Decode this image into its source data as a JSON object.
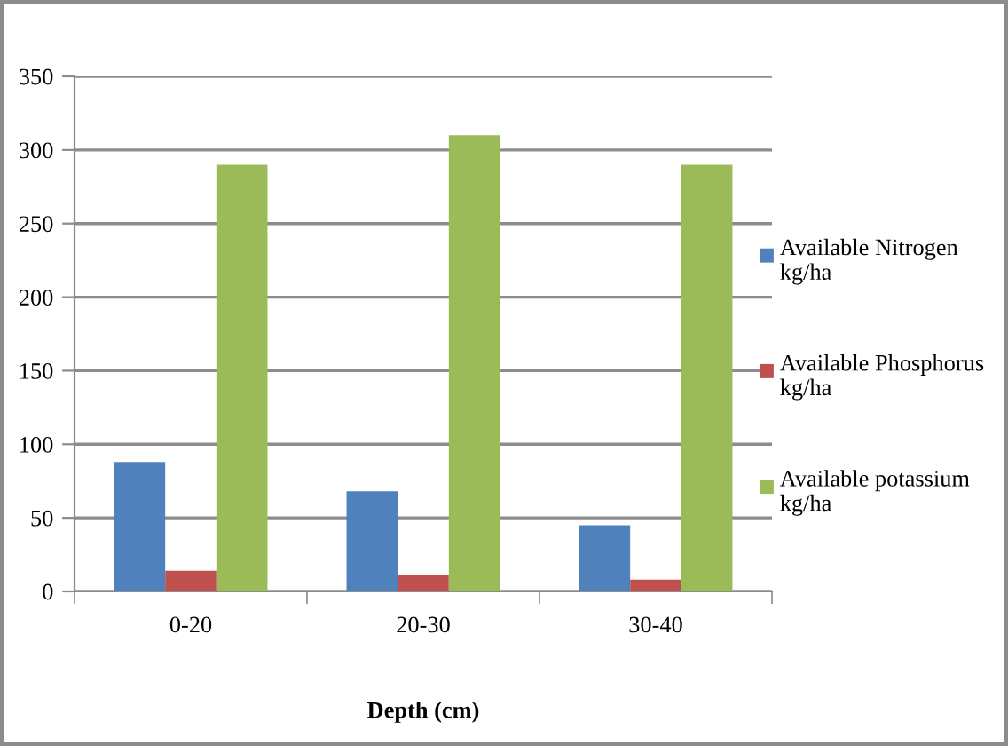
{
  "chart_data": {
    "type": "bar",
    "xlabel": "Depth (cm)",
    "categories": [
      "0-20",
      "20-30",
      "30-40"
    ],
    "series": [
      {
        "name": "Available Nitrogen kg/ha",
        "color": "#4f81bd",
        "values": [
          88,
          68,
          45
        ]
      },
      {
        "name": "Available Phosphorus kg/ha",
        "color": "#c0504d",
        "values": [
          14,
          11,
          8
        ]
      },
      {
        "name": "Available potassium kg/ha",
        "color": "#9bbb59",
        "values": [
          290,
          310,
          290
        ]
      }
    ],
    "ylim": [
      0,
      350
    ],
    "yticks": [
      0,
      50,
      100,
      150,
      200,
      250,
      300,
      350
    ],
    "grid": "y",
    "legend": "right"
  }
}
